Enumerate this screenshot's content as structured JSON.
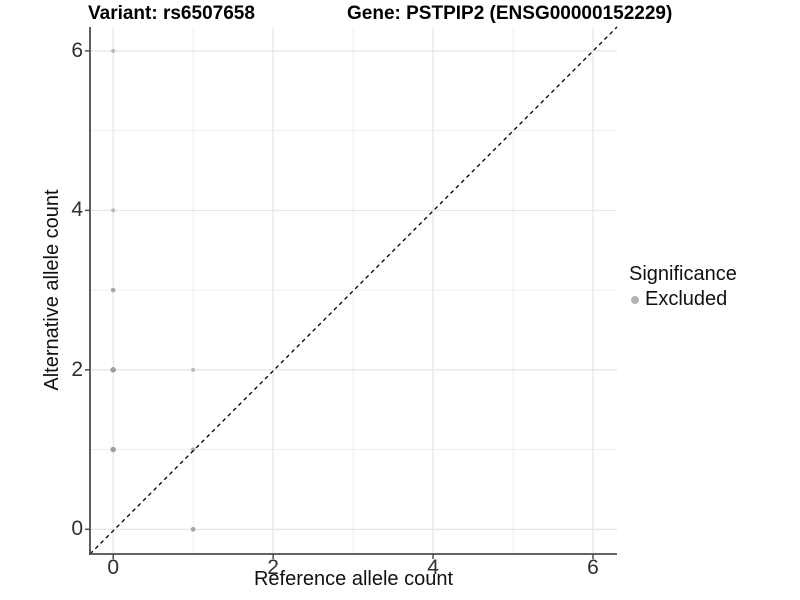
{
  "title": {
    "variant": "Variant: rs6507658",
    "gene": "Gene: PSTPIP2 (ENSG00000152229)"
  },
  "chart_data": {
    "type": "scatter",
    "xlabel": "Reference allele count",
    "ylabel": "Alternative allele count",
    "xlim": [
      -0.29,
      6.3
    ],
    "ylim": [
      -0.31,
      6.3
    ],
    "x_ticks": [
      0,
      2,
      4,
      6
    ],
    "y_ticks": [
      0,
      2,
      4,
      6
    ],
    "minor_gridlines": [
      1,
      3,
      5
    ],
    "grid": "on",
    "identity_line": {
      "style": "dashed",
      "from": [
        -0.29,
        -0.31
      ],
      "to": [
        6.3,
        6.3
      ],
      "color": "#000000"
    },
    "points": [
      {
        "x": 0,
        "y": 6,
        "r": 2.0,
        "color": "#b9b9b9"
      },
      {
        "x": 0,
        "y": 4,
        "r": 2.0,
        "color": "#b9b9b9"
      },
      {
        "x": 0,
        "y": 3,
        "r": 2.4,
        "color": "#a8a8a8"
      },
      {
        "x": 0,
        "y": 2,
        "r": 2.8,
        "color": "#9e9e9e"
      },
      {
        "x": 0,
        "y": 1,
        "r": 2.8,
        "color": "#9e9e9e"
      },
      {
        "x": 1,
        "y": 2,
        "r": 2.0,
        "color": "#b9b9b9"
      },
      {
        "x": 1,
        "y": 1,
        "r": 2.2,
        "color": "#a8a8a8"
      },
      {
        "x": 1,
        "y": 0,
        "r": 2.4,
        "color": "#a8a8a8"
      }
    ],
    "legend": {
      "position": "right",
      "title": "Significance",
      "items": [
        {
          "label": "Excluded",
          "color": "#b3b3b3"
        }
      ]
    }
  },
  "colors": {
    "background": "#ffffff",
    "axis_line": "#4d4d4d",
    "major_grid": "#e2e2e2",
    "minor_grid": "#efefef",
    "point_gray": "#b3b3b3",
    "dashed_line": "#000000"
  }
}
